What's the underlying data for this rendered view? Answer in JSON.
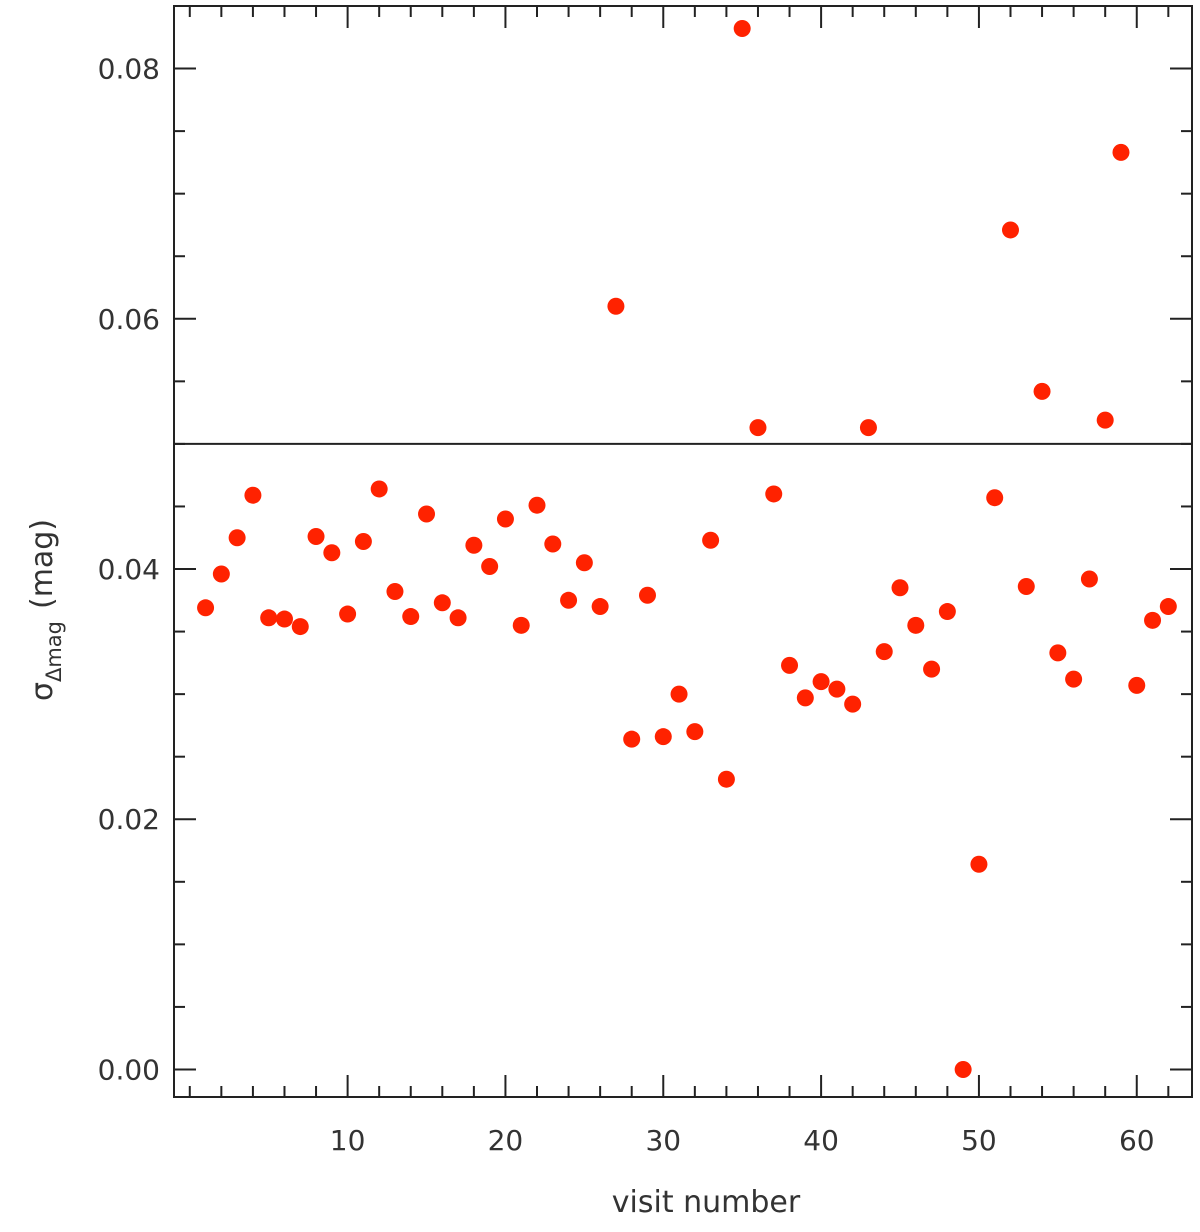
{
  "chart_data": {
    "type": "scatter",
    "title": "",
    "xlabel": "visit number",
    "ylabel": {
      "symbol": "σ",
      "subscript": "Δmag",
      "unit": "(mag)"
    },
    "xlim": [
      -1,
      63.5
    ],
    "ylim": [
      -0.0022,
      0.085
    ],
    "x_ticks": [
      10,
      20,
      30,
      40,
      50,
      60
    ],
    "y_ticks": [
      0.0,
      0.02,
      0.04,
      0.06,
      0.08
    ],
    "y_tick_labels": [
      "0.00",
      "0.02",
      "0.04",
      "0.06",
      "0.08"
    ],
    "reference_line_y": 0.05,
    "marker_color": "#ff2200",
    "grid": false,
    "points": {
      "x": [
        1,
        2,
        3,
        4,
        5,
        6,
        7,
        8,
        9,
        10,
        11,
        12,
        13,
        14,
        15,
        16,
        17,
        18,
        19,
        20,
        21,
        22,
        23,
        24,
        25,
        26,
        27,
        28,
        29,
        30,
        31,
        32,
        33,
        34,
        35,
        36,
        37,
        38,
        39,
        40,
        41,
        42,
        43,
        44,
        45,
        46,
        47,
        48,
        49,
        50,
        51,
        52,
        53,
        54,
        55,
        56,
        57,
        58,
        59,
        60,
        61,
        62
      ],
      "y": [
        0.0369,
        0.0396,
        0.0425,
        0.0459,
        0.0361,
        0.036,
        0.0354,
        0.0426,
        0.0413,
        0.0364,
        0.0422,
        0.0464,
        0.0382,
        0.0362,
        0.0444,
        0.0373,
        0.0361,
        0.0419,
        0.0402,
        0.044,
        0.0355,
        0.0451,
        0.042,
        0.0375,
        0.0405,
        0.037,
        0.061,
        0.0264,
        0.0379,
        0.0266,
        0.03,
        0.027,
        0.0423,
        0.0232,
        0.0832,
        0.0513,
        0.046,
        0.0323,
        0.0297,
        0.031,
        0.0304,
        0.0292,
        0.0513,
        0.0334,
        0.0385,
        0.0355,
        0.032,
        0.0366,
        0.0,
        0.0164,
        0.0457,
        0.0671,
        0.0386,
        0.0542,
        0.0333,
        0.0312,
        0.0392,
        0.0519,
        0.0733,
        0.0307,
        0.0359,
        0.037
      ]
    }
  }
}
